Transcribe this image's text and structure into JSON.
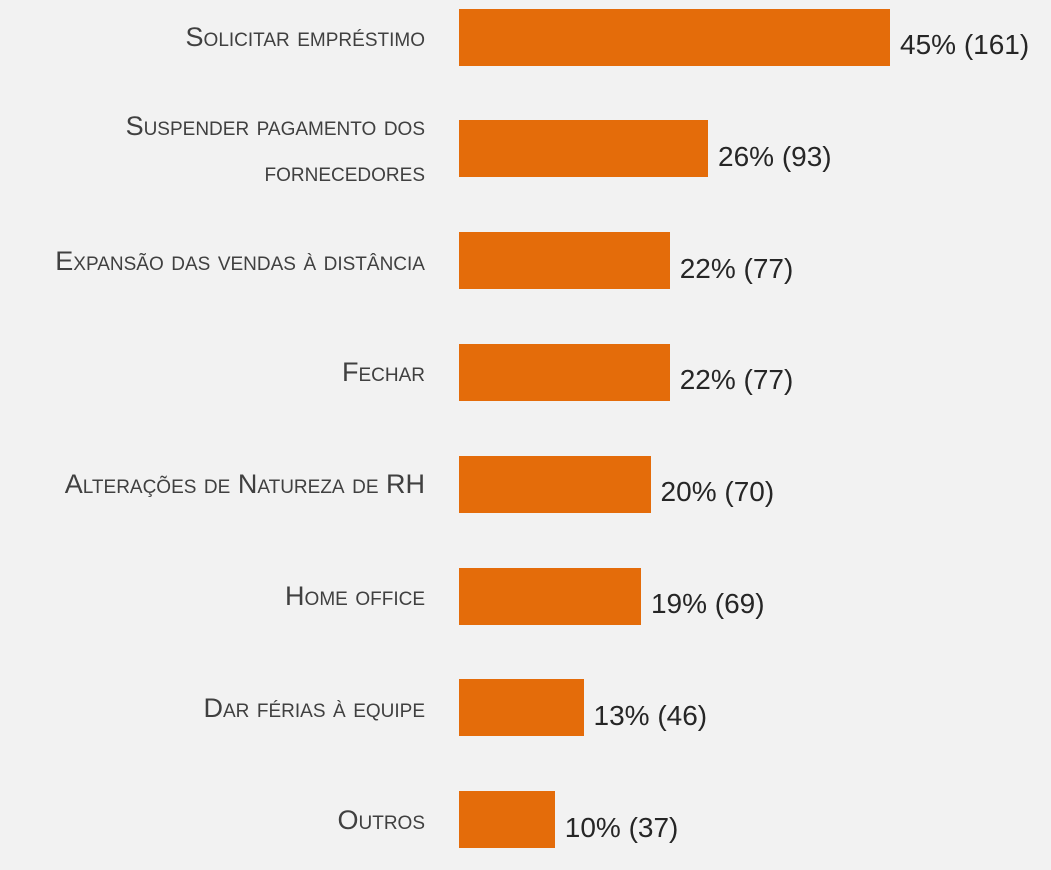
{
  "chart_data": {
    "type": "bar",
    "orientation": "horizontal",
    "categories": [
      "Solicitar empréstimo",
      "Suspender pagamento dos fornecedores",
      "Expansão das vendas à distância",
      "Fechar",
      "Alterações de Natureza de RH",
      "Home office",
      "Dar férias à equipe",
      "Outros"
    ],
    "values": [
      45,
      26,
      22,
      22,
      20,
      19,
      13,
      10
    ],
    "value_labels": [
      "45% (161)",
      "26% (93)",
      "22% (77)",
      "22% (77)",
      "20% (70)",
      "19% (69)",
      "13% (46)",
      "10% (37)"
    ],
    "color": "#e46c0a"
  }
}
